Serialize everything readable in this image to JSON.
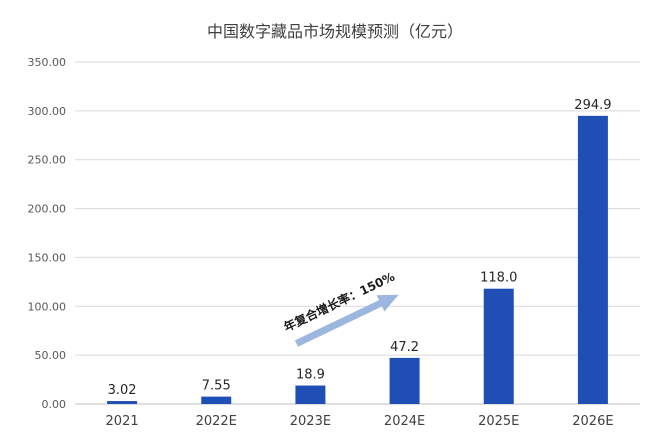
{
  "chart_data": {
    "type": "bar",
    "title": "中国数字藏品市场规模预测（亿元）",
    "categories": [
      "2021",
      "2022E",
      "2023E",
      "2024E",
      "2025E",
      "2026E"
    ],
    "values": [
      3.02,
      7.55,
      18.9,
      47.2,
      118.0,
      294.9
    ],
    "data_labels": [
      "3.02",
      "7.55",
      "18.9",
      "47.2",
      "118.0",
      "294.9"
    ],
    "ylim": [
      0,
      350
    ],
    "yticks": [
      "0.00",
      "50.00",
      "100.00",
      "150.00",
      "200.00",
      "250.00",
      "300.00",
      "350.00"
    ],
    "ytick_values": [
      0,
      50,
      100,
      150,
      200,
      250,
      300,
      350
    ],
    "grid": true,
    "legend": "none",
    "annotation": "年复合增长率：150%",
    "colors": {
      "bar": "#1f4fb4",
      "arrow": "#9db6e0"
    }
  }
}
